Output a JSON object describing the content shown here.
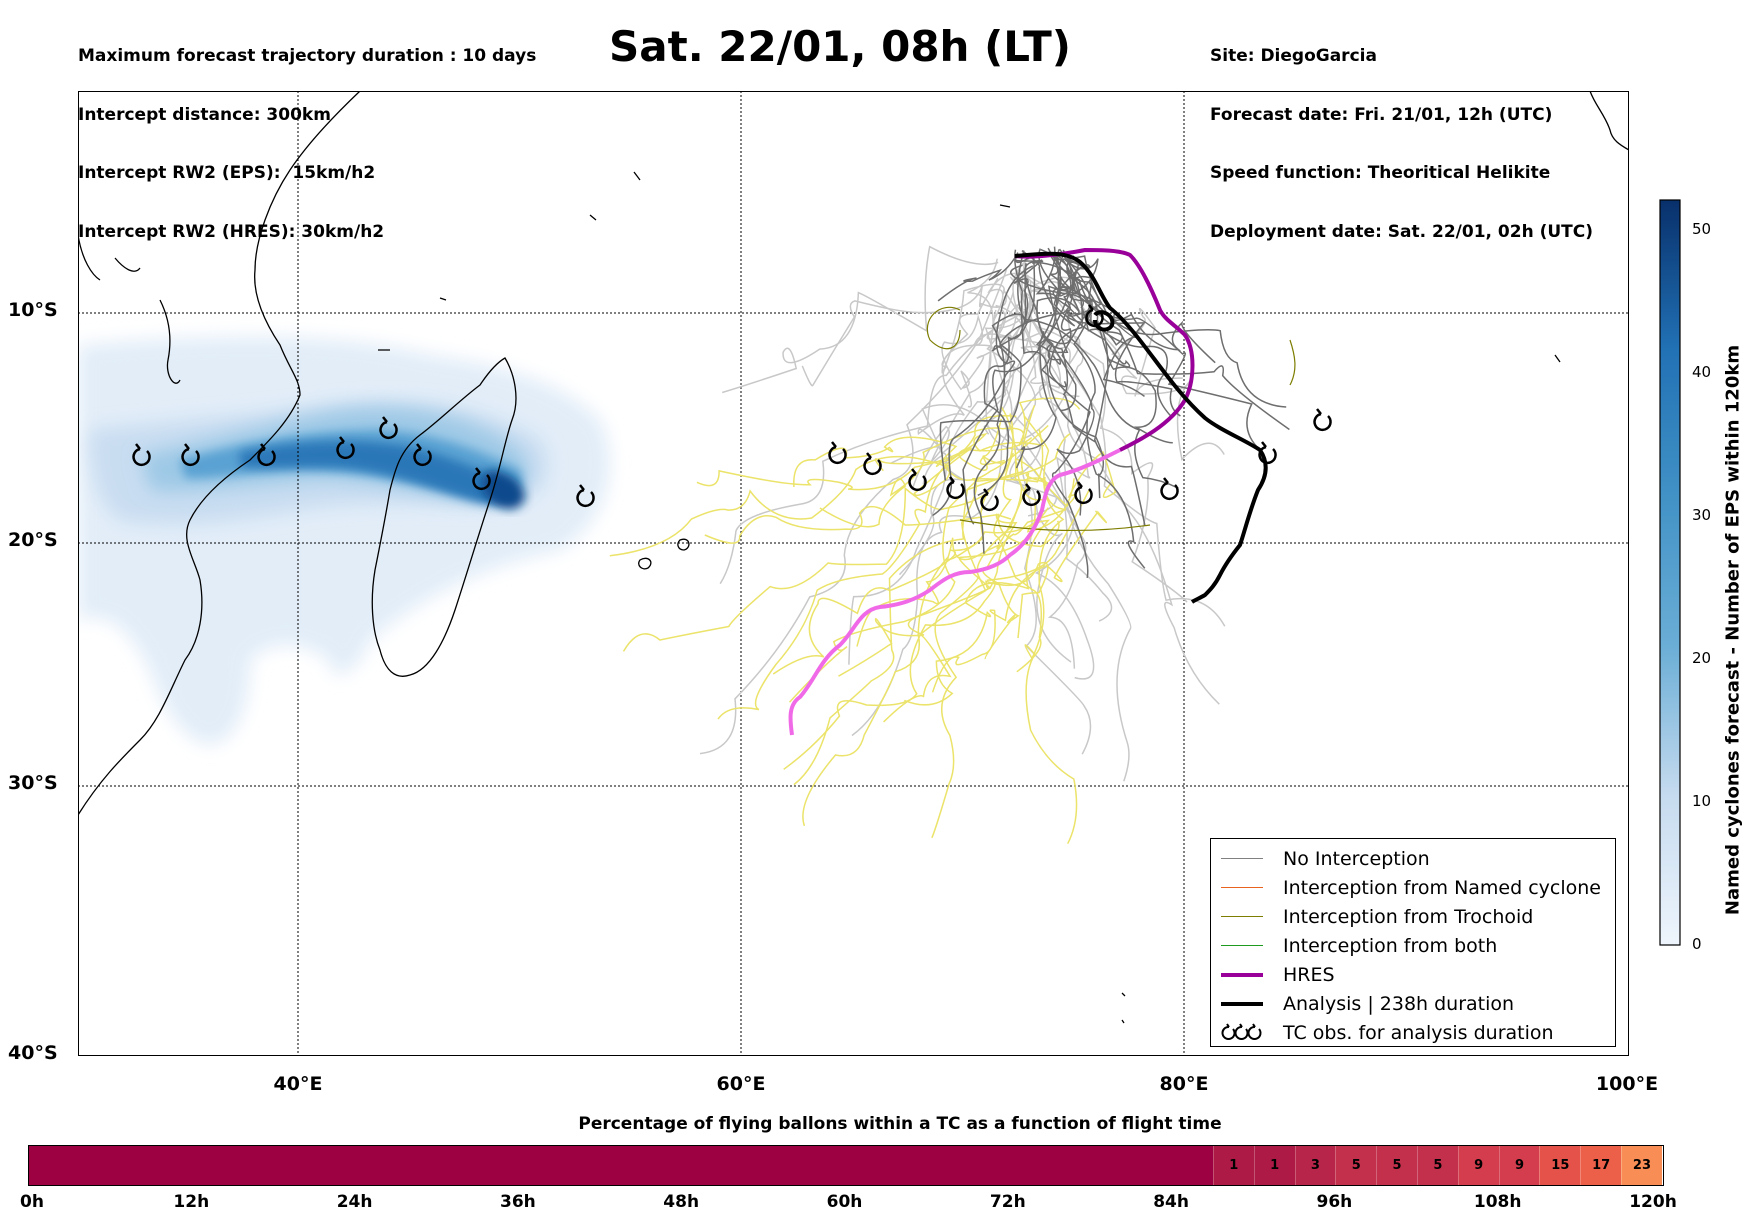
{
  "header": {
    "left_lines": [
      "Maximum forecast trajectory duration : 10 days",
      "Intercept distance: 300km",
      "Intercept RW2 (EPS):  15km/h2",
      "Intercept RW2 (HRES): 30km/h2"
    ],
    "title": "Sat. 22/01, 08h (LT)",
    "right_lines": [
      "Site: DiegoGarcia",
      "Forecast date: Fri. 21/01, 12h (UTC)",
      "Speed function: Theoritical Helikite",
      "Deployment date: Sat. 22/01, 02h (UTC)"
    ]
  },
  "map": {
    "lon_range": [
      30,
      100
    ],
    "lat_range": [
      -40,
      0
    ],
    "lat_labels": [
      "10°S",
      "20°S",
      "30°S",
      "40°S"
    ],
    "lon_labels": [
      "40°E",
      "60°E",
      "80°E",
      "100°E"
    ],
    "gridlines": "dotted"
  },
  "colorbar": {
    "label": "Named cyclones forecast - Number of EPS within 120km",
    "ticks": [
      "0",
      "10",
      "20",
      "30",
      "40",
      "50"
    ],
    "range": [
      0,
      52
    ],
    "colors": [
      "#e6f0fa",
      "#08306b"
    ]
  },
  "legend": {
    "items": [
      {
        "label": "No Interception",
        "color": "#808080",
        "style": "thin"
      },
      {
        "label": "Interception from Named cyclone",
        "color": "#e8641e",
        "style": "thin"
      },
      {
        "label": "Interception from Trochoid",
        "color": "#7d7d00",
        "style": "thin"
      },
      {
        "label": "Interception from both",
        "color": "#1e9b1e",
        "style": "thin"
      },
      {
        "label": "HRES",
        "color": "#990099",
        "style": "thick"
      },
      {
        "label": "Analysis | 238h duration",
        "color": "#000000",
        "style": "thick"
      },
      {
        "label": "TC obs. for analysis duration",
        "icon": "cyclone-symbol-icon"
      }
    ]
  },
  "time_bar": {
    "title": "Percentage of flying ballons within a TC as a function of flight time",
    "ticks": [
      "0h",
      "12h",
      "24h",
      "36h",
      "48h",
      "60h",
      "72h",
      "84h",
      "96h",
      "108h",
      "120h"
    ],
    "base_color": "#9e0142",
    "cells": [
      {
        "value": "1",
        "color": "#ac1a45"
      },
      {
        "value": "1",
        "color": "#ac1a45"
      },
      {
        "value": "3",
        "color": "#b8254a"
      },
      {
        "value": "5",
        "color": "#c2304c"
      },
      {
        "value": "5",
        "color": "#c2304c"
      },
      {
        "value": "5",
        "color": "#c2304c"
      },
      {
        "value": "9",
        "color": "#d33d4e"
      },
      {
        "value": "9",
        "color": "#d33d4e"
      },
      {
        "value": "15",
        "color": "#e4524a"
      },
      {
        "value": "17",
        "color": "#ec5f48"
      },
      {
        "value": "23",
        "color": "#f88e55"
      }
    ]
  }
}
